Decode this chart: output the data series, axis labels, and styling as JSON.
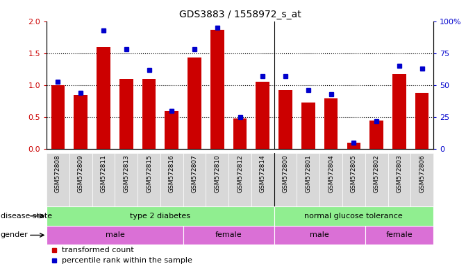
{
  "title": "GDS3883 / 1558972_s_at",
  "samples": [
    "GSM572808",
    "GSM572809",
    "GSM572811",
    "GSM572813",
    "GSM572815",
    "GSM572816",
    "GSM572807",
    "GSM572810",
    "GSM572812",
    "GSM572814",
    "GSM572800",
    "GSM572801",
    "GSM572804",
    "GSM572805",
    "GSM572802",
    "GSM572803",
    "GSM572806"
  ],
  "transformed_count": [
    1.0,
    0.85,
    1.6,
    1.1,
    1.1,
    0.6,
    1.43,
    1.87,
    0.48,
    1.05,
    0.93,
    0.73,
    0.79,
    0.1,
    0.45,
    1.17,
    0.88
  ],
  "percentile_rank": [
    53,
    44,
    93,
    78,
    62,
    30,
    78,
    95,
    25,
    57,
    57,
    46,
    43,
    5,
    22,
    65,
    63
  ],
  "disease_state_groups": [
    {
      "label": "type 2 diabetes",
      "start": 0,
      "end": 9
    },
    {
      "label": "normal glucose tolerance",
      "start": 10,
      "end": 16
    }
  ],
  "gender_groups": [
    {
      "label": "male",
      "start": 0,
      "end": 5
    },
    {
      "label": "female",
      "start": 6,
      "end": 9
    },
    {
      "label": "male",
      "start": 10,
      "end": 13
    },
    {
      "label": "female",
      "start": 14,
      "end": 16
    }
  ],
  "bar_color": "#CC0000",
  "dot_color": "#0000CC",
  "ylim_left": [
    0,
    2
  ],
  "ylim_right": [
    0,
    100
  ],
  "yticks_left": [
    0,
    0.5,
    1.0,
    1.5,
    2.0
  ],
  "yticks_right": [
    0,
    25,
    50,
    75,
    100
  ],
  "ytick_labels_right": [
    "0",
    "25",
    "50",
    "75",
    "100%"
  ],
  "grid_values": [
    0.5,
    1.0,
    1.5
  ],
  "legend_items": [
    "transformed count",
    "percentile rank within the sample"
  ],
  "label_disease_state": "disease state",
  "label_gender": "gender",
  "ds_color": "#90EE90",
  "gender_color": "#DA70D6",
  "xtick_bg": "#d8d8d8"
}
